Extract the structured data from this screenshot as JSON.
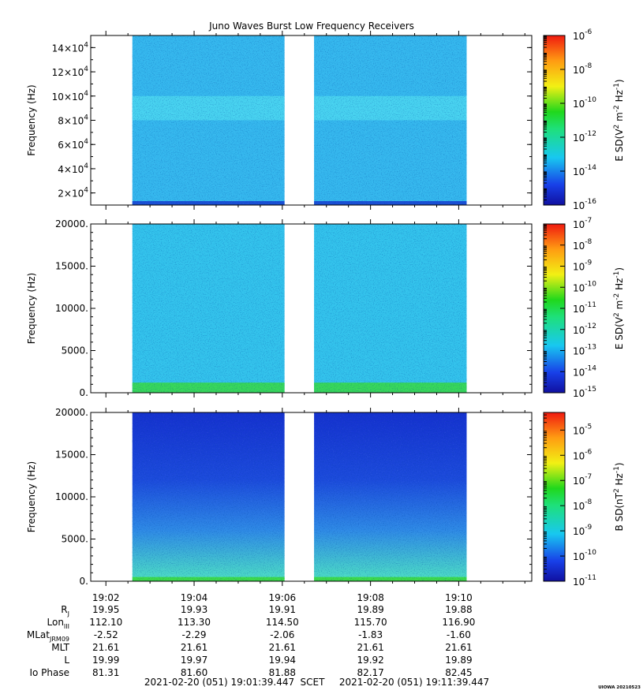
{
  "title": "Juno Waves Burst Low Frequency Receivers",
  "credit": "UIOWA 20210523",
  "time_range": {
    "start": "2021-02-20 (051) 19:01:39.447",
    "system": "SCET",
    "end": "2021-02-20 (051) 19:11:39.447",
    "tmin_min": 1.656,
    "tmax_min": 11.656,
    "gaps": [
      [
        1.656,
        2.6
      ],
      [
        6.05,
        6.72
      ],
      [
        10.18,
        11.656
      ]
    ]
  },
  "x_ticks": [
    "19:02",
    "19:04",
    "19:06",
    "19:08",
    "19:10"
  ],
  "x_ticks_min": [
    2,
    4,
    6,
    8,
    10
  ],
  "ephemeris": {
    "rows": [
      {
        "label": "R",
        "sub": "J",
        "values": [
          "19.95",
          "19.93",
          "19.91",
          "19.89",
          "19.88"
        ]
      },
      {
        "label": "Lon",
        "sub": "III",
        "values": [
          "112.10",
          "113.30",
          "114.50",
          "115.70",
          "116.90"
        ]
      },
      {
        "label": "MLat",
        "sub": "JRM09",
        "values": [
          "-2.52",
          "-2.29",
          "-2.06",
          "-1.83",
          "-1.60"
        ]
      },
      {
        "label": "MLT",
        "sub": "",
        "values": [
          "21.61",
          "21.61",
          "21.61",
          "21.61",
          "21.61"
        ]
      },
      {
        "label": "L",
        "sub": "",
        "values": [
          "19.99",
          "19.97",
          "19.94",
          "19.92",
          "19.89"
        ]
      },
      {
        "label": "Io Phase",
        "sub": "",
        "values": [
          "81.31",
          "81.60",
          "81.88",
          "82.17",
          "82.45"
        ]
      }
    ]
  },
  "chart_data": [
    {
      "type": "heatmap",
      "ylabel": "Frequency (Hz)",
      "ylim": [
        10000,
        150000
      ],
      "y_ticks": [
        {
          "v": 20000,
          "m": "2",
          "e": "4"
        },
        {
          "v": 40000,
          "m": "4",
          "e": "4"
        },
        {
          "v": 60000,
          "m": "6",
          "e": "4"
        },
        {
          "v": 80000,
          "m": "8",
          "e": "4"
        },
        {
          "v": 100000,
          "m": "10",
          "e": "4"
        },
        {
          "v": 120000,
          "m": "12",
          "e": "4"
        },
        {
          "v": 140000,
          "m": "14",
          "e": "4"
        }
      ],
      "colorbar": {
        "label": "E SD (V",
        "unit_parts": [
          "E SD(V",
          "2",
          " m",
          "-2",
          " Hz",
          "-1",
          ")"
        ],
        "log_range": [
          -16,
          -6
        ],
        "ticks": [
          {
            "e": "-6",
            "v": -6
          },
          {
            "e": "-8",
            "v": -8
          },
          {
            "e": "-10",
            "v": -10
          },
          {
            "e": "-12",
            "v": -12
          },
          {
            "e": "-14",
            "v": -14
          },
          {
            "e": "-16",
            "v": -16
          }
        ]
      },
      "colors": {
        "base": "#35b8ee",
        "band": "#4fdcf0",
        "low": "#1a4fd6"
      }
    },
    {
      "type": "heatmap",
      "ylabel": "Frequency (Hz)",
      "ylim": [
        0,
        20000
      ],
      "y_ticks": [
        {
          "v": 0,
          "t": "0."
        },
        {
          "v": 5000,
          "t": "5000."
        },
        {
          "v": 10000,
          "t": "10000."
        },
        {
          "v": 15000,
          "t": "15000."
        },
        {
          "v": 20000,
          "t": "20000."
        }
      ],
      "colorbar": {
        "unit_parts": [
          "E SD(V",
          "2",
          " m",
          "-2",
          " Hz",
          "-1",
          ")"
        ],
        "log_range": [
          -15,
          -7
        ],
        "ticks": [
          {
            "e": "-7",
            "v": -7
          },
          {
            "e": "-8",
            "v": -8
          },
          {
            "e": "-9",
            "v": -9
          },
          {
            "e": "-10",
            "v": -10
          },
          {
            "e": "-11",
            "v": -11
          },
          {
            "e": "-12",
            "v": -12
          },
          {
            "e": "-13",
            "v": -13
          },
          {
            "e": "-14",
            "v": -14
          },
          {
            "e": "-15",
            "v": -15
          }
        ]
      },
      "colors": {
        "base": "#33c3ec",
        "low": "#37d85a"
      }
    },
    {
      "type": "heatmap",
      "ylabel": "Frequency (Hz)",
      "ylim": [
        0,
        20000
      ],
      "y_ticks": [
        {
          "v": 0,
          "t": "0."
        },
        {
          "v": 5000,
          "t": "5000."
        },
        {
          "v": 10000,
          "t": "10000."
        },
        {
          "v": 15000,
          "t": "15000."
        },
        {
          "v": 20000,
          "t": "20000."
        }
      ],
      "colorbar": {
        "unit_parts": [
          "B SD(nT",
          "2",
          " Hz",
          "-1",
          ")"
        ],
        "log_range": [
          -11,
          -4.3
        ],
        "ticks": [
          {
            "e": "-5",
            "v": -5
          },
          {
            "e": "-6",
            "v": -6
          },
          {
            "e": "-7",
            "v": -7
          },
          {
            "e": "-8",
            "v": -8
          },
          {
            "e": "-9",
            "v": -9
          },
          {
            "e": "-10",
            "v": -10
          },
          {
            "e": "-11",
            "v": -11
          }
        ]
      },
      "colors": {
        "top": "#1531cf",
        "mid": "#2f8be6",
        "bottom": "#4ee2c4",
        "low": "#3ddc4a"
      }
    }
  ]
}
